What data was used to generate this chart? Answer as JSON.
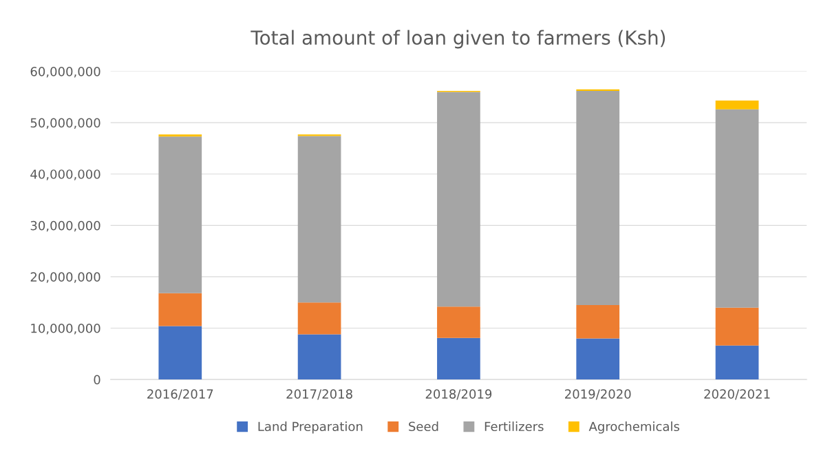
{
  "chart_data": {
    "type": "bar",
    "title": "Total amount of loan given to farmers (Ksh)",
    "stacked": true,
    "categories": [
      "2016/2017",
      "2017/2018",
      "2018/2019",
      "2019/2020",
      "2020/2021"
    ],
    "series": [
      {
        "name": "Land Preparation",
        "color": "#4472c4",
        "values": [
          10400000,
          8800000,
          8100000,
          8000000,
          6600000
        ]
      },
      {
        "name": "Seed",
        "color": "#ed7d31",
        "values": [
          6400000,
          6200000,
          6100000,
          6500000,
          7400000
        ]
      },
      {
        "name": "Fertilizers",
        "color": "#a5a5a5",
        "values": [
          30500000,
          32400000,
          41800000,
          41700000,
          38600000
        ]
      },
      {
        "name": "Agrochemicals",
        "color": "#ffc000",
        "values": [
          400000,
          300000,
          200000,
          300000,
          1700000
        ]
      }
    ],
    "ylim": [
      0,
      60000000
    ],
    "yticks": [
      0,
      {
        "value": 10000000,
        "label": "10,000,000"
      },
      {
        "value": 20000000,
        "label": "20,000,000"
      },
      {
        "value": 30000000,
        "label": "30,000,000"
      },
      {
        "value": 40000000,
        "label": "40,000,000"
      },
      {
        "value": 50000000,
        "label": "50,000,000"
      },
      {
        "value": 60000000,
        "label": "60,000,000"
      }
    ],
    "grid": "y",
    "legend": "bottom"
  }
}
